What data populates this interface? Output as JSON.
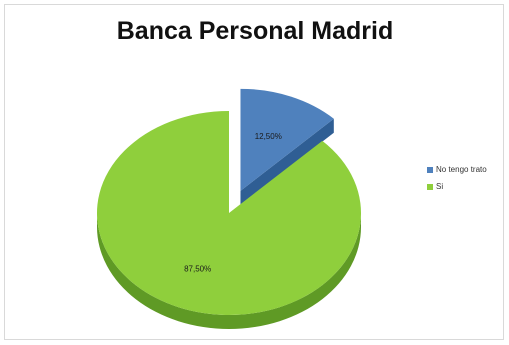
{
  "chart_data": {
    "type": "pie",
    "title": "Banca Personal Madrid",
    "categories": [
      "No tengo trato",
      "Si"
    ],
    "values": [
      12.5,
      87.5
    ],
    "data_labels": [
      "12,50%",
      "87,50%"
    ],
    "colors": [
      "#4f81bd",
      "#8fcf3c"
    ],
    "side_colors": [
      "#2f5e94",
      "#5f9a25"
    ],
    "legend_position": "right",
    "exploded_slice": "No tengo trato",
    "style": "3d"
  }
}
